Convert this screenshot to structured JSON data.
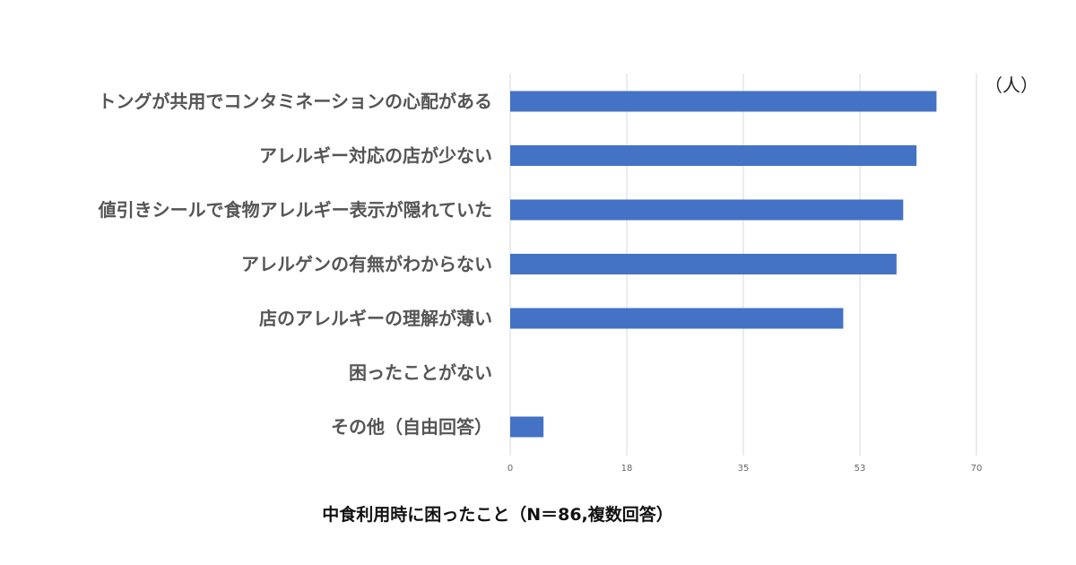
{
  "chart_data": {
    "type": "bar",
    "orientation": "horizontal",
    "categories": [
      "トングが共用でコンタミネーションの心配がある",
      "アレルギー対応の店が少ない",
      "値引きシールで食物アレルギー表示が隠れていた",
      "アレルゲンの有無がわからない",
      "店のアレルギーの理解が薄い",
      "困ったことがない",
      "その他（自由回答）"
    ],
    "values": [
      64,
      61,
      59,
      58,
      50,
      0,
      5
    ],
    "xlim": [
      0,
      70
    ],
    "xticks": [
      "0",
      "18",
      "35",
      "53",
      "70"
    ],
    "unit": "（人）",
    "caption": "中食利用時に困ったこと（N＝86,複数回答）",
    "grid": true,
    "legend": "none",
    "bar_color": "#4472c4",
    "grid_color": "#d9d9d9",
    "label_color": "#555555"
  }
}
